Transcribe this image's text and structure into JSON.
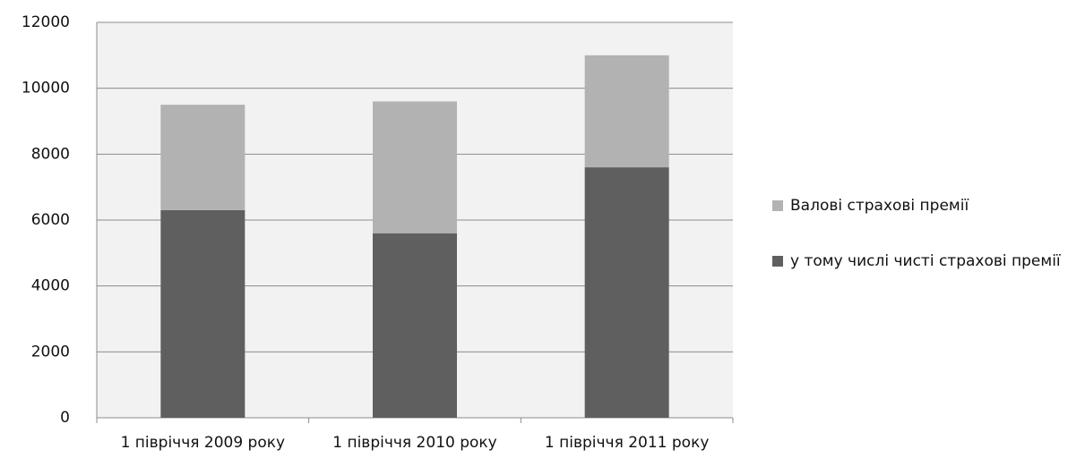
{
  "chart_data": {
    "type": "stacked_bar",
    "categories": [
      "1 півріччя 2009 року",
      "1 півріччя 2010 року",
      "1 півріччя 2011 року"
    ],
    "series": [
      {
        "name": "у тому числі чисті страхові премії",
        "color": "#5f5f5f",
        "values": [
          6300,
          5600,
          7600
        ]
      },
      {
        "name": "Валові страхові премії",
        "color": "#b2b2b2",
        "values": [
          3200,
          4000,
          3400
        ]
      }
    ],
    "ylim": [
      0,
      12000
    ],
    "yticks": [
      0,
      2000,
      4000,
      6000,
      8000,
      10000,
      12000
    ],
    "grid": true,
    "legend": "right"
  }
}
